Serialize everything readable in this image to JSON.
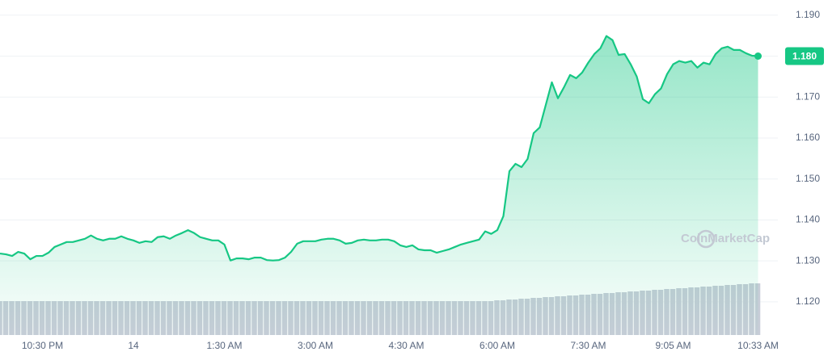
{
  "chart_data": {
    "type": "line",
    "watermark": "CoinMarketCap",
    "categories": [
      null,
      null,
      null,
      null,
      null,
      null,
      null,
      "10:30 PM",
      null,
      null,
      null,
      null,
      null,
      null,
      null,
      null,
      null,
      null,
      null,
      null,
      null,
      null,
      "14",
      null,
      null,
      null,
      null,
      null,
      null,
      null,
      null,
      null,
      null,
      null,
      null,
      null,
      null,
      "1:30 AM",
      null,
      null,
      null,
      null,
      null,
      null,
      null,
      null,
      null,
      null,
      null,
      null,
      null,
      null,
      "3:00 AM",
      null,
      null,
      null,
      null,
      null,
      null,
      null,
      null,
      null,
      null,
      null,
      null,
      null,
      null,
      "4:30 AM",
      null,
      null,
      null,
      null,
      null,
      null,
      null,
      null,
      null,
      null,
      null,
      null,
      null,
      null,
      "6:00 AM",
      null,
      null,
      null,
      null,
      null,
      null,
      null,
      null,
      null,
      null,
      null,
      null,
      null,
      null,
      "7:30 AM",
      null,
      null,
      null,
      null,
      null,
      null,
      null,
      null,
      null,
      null,
      null,
      null,
      null,
      "9:05 AM",
      null,
      null,
      null,
      null,
      null,
      null,
      null,
      null,
      null,
      null,
      null,
      null,
      null,
      "10:33 AM"
    ],
    "series": [
      {
        "color": "#16c784",
        "values": [
          1.1318,
          1.1316,
          1.1312,
          1.1322,
          1.1318,
          1.1304,
          1.1312,
          1.1312,
          1.132,
          1.1334,
          1.134,
          1.1346,
          1.1346,
          1.135,
          1.1354,
          1.1362,
          1.1354,
          1.135,
          1.1354,
          1.1354,
          1.136,
          1.1354,
          1.135,
          1.1344,
          1.1348,
          1.1346,
          1.1358,
          1.136,
          1.1354,
          1.1362,
          1.1368,
          1.1375,
          1.1368,
          1.1358,
          1.1354,
          1.135,
          1.135,
          1.134,
          1.1301,
          1.1306,
          1.1306,
          1.1304,
          1.1308,
          1.1308,
          1.1302,
          1.1301,
          1.1302,
          1.1308,
          1.1322,
          1.1342,
          1.1348,
          1.1348,
          1.1348,
          1.1352,
          1.1354,
          1.1354,
          1.135,
          1.1342,
          1.1344,
          1.135,
          1.1352,
          1.135,
          1.135,
          1.1352,
          1.1352,
          1.1348,
          1.1338,
          1.1334,
          1.1338,
          1.1328,
          1.1326,
          1.1326,
          1.132,
          1.1324,
          1.1328,
          1.1334,
          1.134,
          1.1344,
          1.1348,
          1.1352,
          1.1372,
          1.1366,
          1.1375,
          1.1409,
          1.1519,
          1.1537,
          1.1529,
          1.1549,
          1.1612,
          1.1626,
          1.1681,
          1.1736,
          1.1697,
          1.1724,
          1.1754,
          1.1746,
          1.176,
          1.1784,
          1.1805,
          1.1819,
          1.1849,
          1.1839,
          1.1803,
          1.1805,
          1.178,
          1.175,
          1.1695,
          1.1685,
          1.1707,
          1.1721,
          1.1756,
          1.178,
          1.1788,
          1.1784,
          1.1788,
          1.1772,
          1.1784,
          1.178,
          1.1805,
          1.1819,
          1.1823,
          1.1815,
          1.1815,
          1.1807,
          1.1801,
          1.18
        ]
      }
    ],
    "volume": {
      "color": "#c8cdd8",
      "values": [
        42,
        42,
        42,
        42,
        42,
        42,
        42,
        42,
        42,
        42,
        42,
        42,
        42,
        42,
        42,
        42,
        42,
        42,
        42,
        42,
        42,
        42,
        42,
        42,
        42,
        42,
        42,
        42,
        42,
        42,
        42,
        42,
        42,
        42,
        42,
        42,
        42,
        42,
        42,
        42,
        42,
        42,
        42,
        42,
        42,
        42,
        42,
        42,
        42,
        42,
        42,
        42,
        42,
        42,
        42,
        42,
        42,
        42,
        42,
        42,
        42,
        42,
        42,
        42,
        42,
        42,
        42,
        42,
        42,
        42,
        42,
        42,
        42,
        42,
        42,
        42,
        42,
        42,
        42,
        42,
        42,
        42,
        43,
        43,
        44,
        44,
        45,
        45,
        46,
        46,
        47,
        47,
        48,
        48,
        49,
        49,
        50,
        50,
        51,
        51,
        52,
        52,
        53,
        53,
        54,
        54,
        55,
        55,
        56,
        56,
        57,
        57,
        58,
        58,
        59,
        59,
        60,
        60,
        61,
        61,
        62,
        62,
        63,
        63,
        64,
        64
      ]
    },
    "ylim": [
      1.1119,
      1.1937
    ],
    "yticks": [
      {
        "value": 1.12,
        "label": "1.120"
      },
      {
        "value": 1.13,
        "label": "1.130"
      },
      {
        "value": 1.14,
        "label": "1.140"
      },
      {
        "value": 1.15,
        "label": "1.150"
      },
      {
        "value": 1.16,
        "label": "1.160"
      },
      {
        "value": 1.17,
        "label": "1.170"
      },
      {
        "value": 1.18,
        "label": "1.180"
      },
      {
        "value": 1.19,
        "label": "1.190"
      }
    ],
    "grid": true
  }
}
